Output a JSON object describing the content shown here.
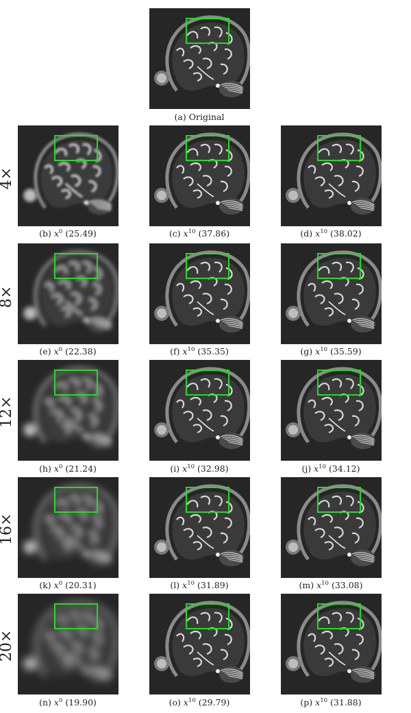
{
  "original": {
    "label": "(a) Original"
  },
  "row_labels": [
    "4×",
    "8×",
    "12×",
    "16×",
    "20×"
  ],
  "captions": [
    [
      "(b)",
      "(25.49)",
      "(c)",
      "(37.86)",
      "(d)",
      "(38.02)"
    ],
    [
      "(e)",
      "(22.38)",
      "(f)",
      "(35.35)",
      "(g)",
      "(35.59)"
    ],
    [
      "(h)",
      "(21.24)",
      "(i)",
      "(32.98)",
      "(j)",
      "(34.12)"
    ],
    [
      "(k)",
      "(20.31)",
      "(l)",
      "(31.89)",
      "(m)",
      "(33.08)"
    ],
    [
      "(n)",
      "(19.90)",
      "(o)",
      "(29.79)",
      "(p)",
      "(31.88)"
    ]
  ],
  "symbols": {
    "x": "x",
    "sup_first": "0",
    "sup_iter": "10"
  },
  "colors": {
    "roi_box": "#22dd22",
    "background": "#2a2a2a"
  }
}
